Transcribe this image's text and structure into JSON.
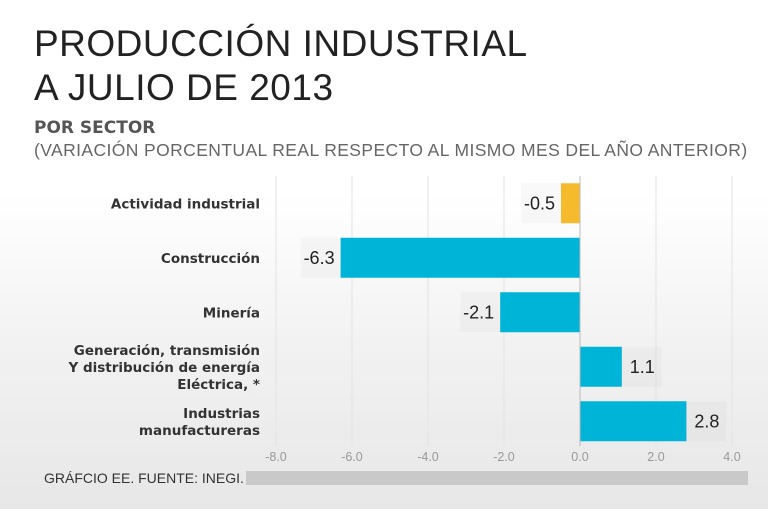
{
  "title": {
    "line1": "PRODUCCIÓN INDUSTRIAL",
    "line2": "A JULIO DE 2013"
  },
  "subtitle": "POR SECTOR",
  "note": "(VARIACIÓN PORCENTUAL REAL RESPECTO AL MISMO MES DEL AÑO ANTERIOR)",
  "footer": "GRÁFCIO EE. FUENTE: INEGI.",
  "colors": {
    "highlight": "#F5BB2C",
    "bar": "#00B4D8",
    "grid": "#e3e3e3"
  },
  "chart_data": {
    "type": "bar",
    "orientation": "horizontal",
    "categories": [
      [
        "Actividad industrial"
      ],
      [
        "Construcción"
      ],
      [
        "Minería"
      ],
      [
        "Generación, transmisión",
        "Y distribución de energía",
        "Eléctrica, *"
      ],
      [
        "Industrias",
        "manufactureras"
      ]
    ],
    "values": [
      -0.5,
      -6.3,
      -2.1,
      1.1,
      2.8
    ],
    "value_labels": [
      "-0.5",
      "-6.3",
      "-2.1",
      "1.1",
      "2.8"
    ],
    "highlight_index": 0,
    "xlim": [
      -8,
      4
    ],
    "xticks": [
      -8,
      -6,
      -4,
      -2,
      0,
      2,
      4
    ],
    "xtick_labels": [
      "-8.0",
      "-6.0",
      "-4.0",
      "-2.0",
      "0.0",
      "2.0",
      "4.0"
    ],
    "grid": true
  }
}
